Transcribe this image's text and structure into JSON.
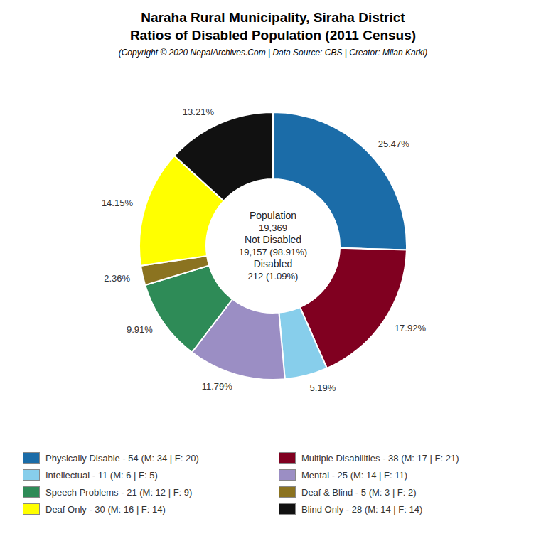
{
  "chart_data": {
    "type": "donut",
    "title": [
      "Naraha Rural Municipality, Siraha District",
      "Ratios of Disabled Population (2011 Census)"
    ],
    "subtitle": "(Copyright © 2020 NepalArchives.Com | Data Source: CBS | Creator: Milan Karki)",
    "categories": [
      "Physically Disable - 54 (M: 34 | F: 20)",
      "Multiple Disabilities - 38 (M: 17 | F: 21)",
      "Intellectual - 11 (M: 6 | F: 5)",
      "Mental - 25 (M: 14 | F: 11)",
      "Speech Problems - 21 (M: 12 | F: 9)",
      "Deaf & Blind - 5 (M: 3 | F: 2)",
      "Deaf Only - 30 (M: 16 | F: 14)",
      "Blind Only - 28 (M: 14 | F: 14)"
    ],
    "values": [
      25.47,
      17.92,
      5.19,
      11.79,
      9.91,
      2.36,
      14.15,
      13.21
    ],
    "value_labels": [
      "25.47%",
      "17.92%",
      "5.19%",
      "11.79%",
      "9.91%",
      "2.36%",
      "14.15%",
      "13.21%"
    ],
    "colors": [
      "#1b6ca8",
      "#800020",
      "#87ceeb",
      "#9b8ec4",
      "#2e8b57",
      "#8b7320",
      "#ffff00",
      "#111111"
    ],
    "data_labels": true,
    "legend": "bottom",
    "annotations": [
      "Population",
      "19,369",
      "Not Disabled",
      "19,157 (98.91%)",
      "Disabled",
      "212 (1.09%)"
    ]
  }
}
